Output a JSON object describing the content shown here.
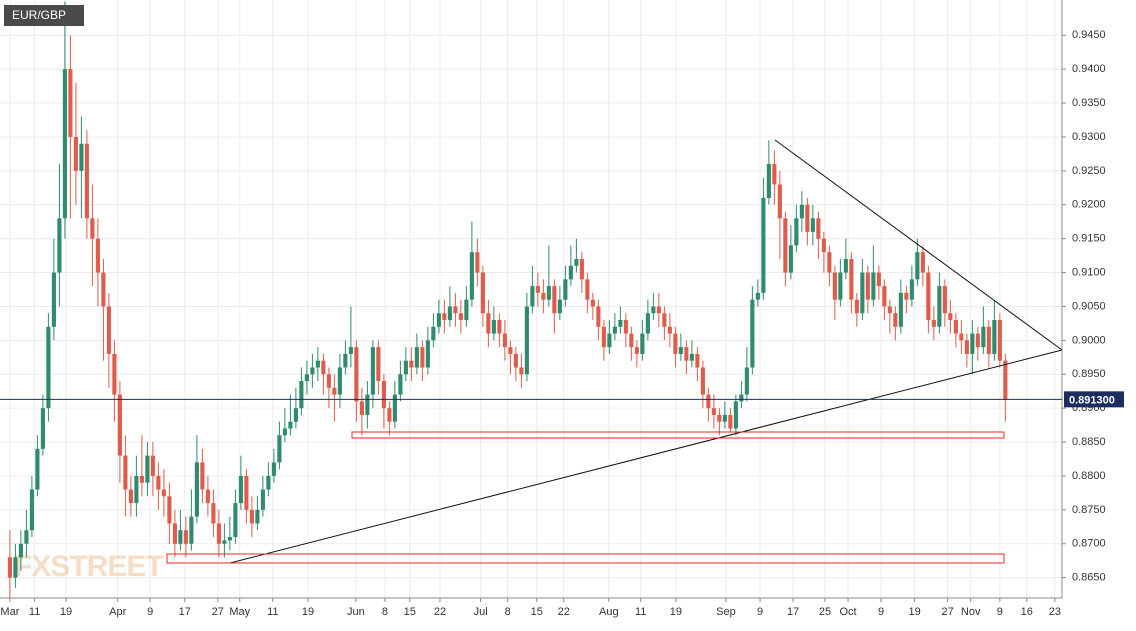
{
  "chart_data": {
    "type": "candlestick",
    "symbol": "EUR/GBP",
    "watermark": "FXSTREET",
    "up_color": "#2f8a6e",
    "down_color": "#de5c4c",
    "grid": true,
    "ylim": [
      0.862,
      0.9502
    ],
    "xlim": [
      -1.8,
      191.3
    ],
    "yticks": [
      {
        "value": 0.865,
        "label": "0.8650"
      },
      {
        "value": 0.87,
        "label": "0.8700"
      },
      {
        "value": 0.875,
        "label": "0.8750"
      },
      {
        "value": 0.88,
        "label": "0.8800"
      },
      {
        "value": 0.885,
        "label": "0.8850"
      },
      {
        "value": 0.89,
        "label": "0.8900"
      },
      {
        "value": 0.895,
        "label": "0.8950"
      },
      {
        "value": 0.9,
        "label": "0.9000"
      },
      {
        "value": 0.905,
        "label": "0.9050"
      },
      {
        "value": 0.91,
        "label": "0.9100"
      },
      {
        "value": 0.915,
        "label": "0.9150"
      },
      {
        "value": 0.92,
        "label": "0.9200"
      },
      {
        "value": 0.925,
        "label": "0.9250"
      },
      {
        "value": 0.93,
        "label": "0.9300"
      },
      {
        "value": 0.935,
        "label": "0.9350"
      },
      {
        "value": 0.94,
        "label": "0.9400"
      },
      {
        "value": 0.945,
        "label": "0.9450"
      }
    ],
    "xticks": [
      {
        "value": 0,
        "label": "Mar"
      },
      {
        "value": 4.5,
        "label": "11"
      },
      {
        "value": 10.2,
        "label": "19"
      },
      {
        "value": 19.6,
        "label": "Apr"
      },
      {
        "value": 25.5,
        "label": "9"
      },
      {
        "value": 31.8,
        "label": "17"
      },
      {
        "value": 37.8,
        "label": "27"
      },
      {
        "value": 41.8,
        "label": "May"
      },
      {
        "value": 47.8,
        "label": "11"
      },
      {
        "value": 54.2,
        "label": "19"
      },
      {
        "value": 62.9,
        "label": "Jun"
      },
      {
        "value": 68.2,
        "label": "8"
      },
      {
        "value": 72.7,
        "label": "15"
      },
      {
        "value": 78.2,
        "label": "22"
      },
      {
        "value": 85.6,
        "label": "Jul"
      },
      {
        "value": 90.5,
        "label": "8"
      },
      {
        "value": 95.8,
        "label": "15"
      },
      {
        "value": 100.7,
        "label": "22"
      },
      {
        "value": 108.9,
        "label": "Aug"
      },
      {
        "value": 114.7,
        "label": "11"
      },
      {
        "value": 121.1,
        "label": "19"
      },
      {
        "value": 130.2,
        "label": "Sep"
      },
      {
        "value": 136.4,
        "label": "9"
      },
      {
        "value": 142.4,
        "label": "17"
      },
      {
        "value": 148.2,
        "label": "25"
      },
      {
        "value": 152.4,
        "label": "Oct"
      },
      {
        "value": 158.4,
        "label": "9"
      },
      {
        "value": 164.5,
        "label": "19"
      },
      {
        "value": 170.5,
        "label": "27"
      },
      {
        "value": 174.7,
        "label": "Nov"
      },
      {
        "value": 180,
        "label": "9"
      },
      {
        "value": 184.9,
        "label": "16"
      },
      {
        "value": 190,
        "label": "23"
      }
    ],
    "last_price": {
      "value": 0.8913,
      "label": "0.891300"
    },
    "candles": [
      [
        0.868,
        0.872,
        0.862,
        0.865
      ],
      [
        0.865,
        0.87,
        0.8635,
        0.868
      ],
      [
        0.868,
        0.872,
        0.866,
        0.87
      ],
      [
        0.87,
        0.875,
        0.868,
        0.872
      ],
      [
        0.872,
        0.88,
        0.871,
        0.878
      ],
      [
        0.878,
        0.886,
        0.877,
        0.884
      ],
      [
        0.884,
        0.892,
        0.883,
        0.89
      ],
      [
        0.89,
        0.904,
        0.888,
        0.902
      ],
      [
        0.902,
        0.915,
        0.9,
        0.91
      ],
      [
        0.91,
        0.926,
        0.905,
        0.918
      ],
      [
        0.918,
        0.95,
        0.915,
        0.94
      ],
      [
        0.94,
        0.945,
        0.918,
        0.93
      ],
      [
        0.93,
        0.938,
        0.92,
        0.925
      ],
      [
        0.925,
        0.933,
        0.918,
        0.929
      ],
      [
        0.929,
        0.931,
        0.915,
        0.918
      ],
      [
        0.918,
        0.923,
        0.908,
        0.915
      ],
      [
        0.915,
        0.918,
        0.905,
        0.91
      ],
      [
        0.91,
        0.912,
        0.897,
        0.905
      ],
      [
        0.905,
        0.907,
        0.893,
        0.898
      ],
      [
        0.898,
        0.9,
        0.888,
        0.892
      ],
      [
        0.892,
        0.894,
        0.879,
        0.883
      ],
      [
        0.883,
        0.886,
        0.874,
        0.878
      ],
      [
        0.878,
        0.88,
        0.874,
        0.876
      ],
      [
        0.876,
        0.883,
        0.874,
        0.88
      ],
      [
        0.88,
        0.886,
        0.877,
        0.879
      ],
      [
        0.879,
        0.885,
        0.877,
        0.883
      ],
      [
        0.883,
        0.885,
        0.877,
        0.88
      ],
      [
        0.88,
        0.882,
        0.875,
        0.878
      ],
      [
        0.878,
        0.881,
        0.874,
        0.877
      ],
      [
        0.877,
        0.879,
        0.87,
        0.873
      ],
      [
        0.873,
        0.875,
        0.868,
        0.87
      ],
      [
        0.87,
        0.875,
        0.869,
        0.872
      ],
      [
        0.872,
        0.874,
        0.868,
        0.87
      ],
      [
        0.87,
        0.878,
        0.869,
        0.874
      ],
      [
        0.874,
        0.886,
        0.873,
        0.882
      ],
      [
        0.882,
        0.884,
        0.876,
        0.878
      ],
      [
        0.878,
        0.88,
        0.874,
        0.876
      ],
      [
        0.876,
        0.878,
        0.871,
        0.873
      ],
      [
        0.873,
        0.875,
        0.868,
        0.87
      ],
      [
        0.87,
        0.873,
        0.868,
        0.8705
      ],
      [
        0.8705,
        0.874,
        0.869,
        0.871
      ],
      [
        0.871,
        0.878,
        0.87,
        0.876
      ],
      [
        0.876,
        0.883,
        0.875,
        0.88
      ],
      [
        0.88,
        0.881,
        0.873,
        0.875
      ],
      [
        0.875,
        0.877,
        0.871,
        0.873
      ],
      [
        0.873,
        0.877,
        0.872,
        0.875
      ],
      [
        0.875,
        0.88,
        0.874,
        0.878
      ],
      [
        0.878,
        0.882,
        0.877,
        0.88
      ],
      [
        0.88,
        0.884,
        0.879,
        0.882
      ],
      [
        0.882,
        0.888,
        0.881,
        0.886
      ],
      [
        0.886,
        0.89,
        0.885,
        0.887
      ],
      [
        0.887,
        0.892,
        0.886,
        0.888
      ],
      [
        0.888,
        0.893,
        0.887,
        0.89
      ],
      [
        0.89,
        0.896,
        0.889,
        0.894
      ],
      [
        0.894,
        0.897,
        0.892,
        0.895
      ],
      [
        0.895,
        0.898,
        0.893,
        0.896
      ],
      [
        0.896,
        0.899,
        0.894,
        0.897
      ],
      [
        0.897,
        0.898,
        0.892,
        0.895
      ],
      [
        0.895,
        0.896,
        0.89,
        0.893
      ],
      [
        0.893,
        0.895,
        0.888,
        0.892
      ],
      [
        0.892,
        0.898,
        0.89,
        0.896
      ],
      [
        0.896,
        0.9,
        0.895,
        0.898
      ],
      [
        0.898,
        0.905,
        0.896,
        0.899
      ],
      [
        0.899,
        0.9,
        0.888,
        0.891
      ],
      [
        0.891,
        0.893,
        0.886,
        0.889
      ],
      [
        0.889,
        0.894,
        0.887,
        0.892
      ],
      [
        0.892,
        0.9,
        0.89,
        0.899
      ],
      [
        0.899,
        0.9,
        0.892,
        0.894
      ],
      [
        0.894,
        0.895,
        0.887,
        0.89
      ],
      [
        0.89,
        0.891,
        0.886,
        0.888
      ],
      [
        0.888,
        0.894,
        0.887,
        0.892
      ],
      [
        0.892,
        0.897,
        0.891,
        0.895
      ],
      [
        0.895,
        0.899,
        0.894,
        0.897
      ],
      [
        0.897,
        0.899,
        0.894,
        0.896
      ],
      [
        0.896,
        0.901,
        0.895,
        0.899
      ],
      [
        0.899,
        0.9,
        0.894,
        0.896
      ],
      [
        0.896,
        0.902,
        0.895,
        0.9
      ],
      [
        0.9,
        0.904,
        0.899,
        0.902
      ],
      [
        0.902,
        0.906,
        0.901,
        0.904
      ],
      [
        0.904,
        0.906,
        0.901,
        0.903
      ],
      [
        0.903,
        0.908,
        0.902,
        0.905
      ],
      [
        0.905,
        0.907,
        0.902,
        0.904
      ],
      [
        0.904,
        0.906,
        0.901,
        0.903
      ],
      [
        0.903,
        0.908,
        0.902,
        0.906
      ],
      [
        0.906,
        0.9175,
        0.905,
        0.913
      ],
      [
        0.913,
        0.915,
        0.908,
        0.91
      ],
      [
        0.91,
        0.911,
        0.902,
        0.904
      ],
      [
        0.904,
        0.906,
        0.899,
        0.901
      ],
      [
        0.901,
        0.905,
        0.9,
        0.903
      ],
      [
        0.903,
        0.904,
        0.899,
        0.901
      ],
      [
        0.901,
        0.903,
        0.897,
        0.899
      ],
      [
        0.899,
        0.9,
        0.895,
        0.898
      ],
      [
        0.898,
        0.899,
        0.894,
        0.896
      ],
      [
        0.896,
        0.898,
        0.893,
        0.895
      ],
      [
        0.895,
        0.907,
        0.894,
        0.905
      ],
      [
        0.905,
        0.911,
        0.904,
        0.908
      ],
      [
        0.908,
        0.91,
        0.905,
        0.907
      ],
      [
        0.907,
        0.909,
        0.904,
        0.906
      ],
      [
        0.906,
        0.914,
        0.905,
        0.908
      ],
      [
        0.908,
        0.909,
        0.901,
        0.904
      ],
      [
        0.904,
        0.908,
        0.903,
        0.906
      ],
      [
        0.906,
        0.911,
        0.905,
        0.909
      ],
      [
        0.909,
        0.914,
        0.908,
        0.911
      ],
      [
        0.911,
        0.915,
        0.91,
        0.912
      ],
      [
        0.912,
        0.913,
        0.907,
        0.909
      ],
      [
        0.909,
        0.91,
        0.904,
        0.906
      ],
      [
        0.906,
        0.907,
        0.903,
        0.905
      ],
      [
        0.905,
        0.906,
        0.9,
        0.902
      ],
      [
        0.902,
        0.903,
        0.897,
        0.899
      ],
      [
        0.899,
        0.903,
        0.898,
        0.901
      ],
      [
        0.901,
        0.904,
        0.9,
        0.902
      ],
      [
        0.902,
        0.905,
        0.901,
        0.903
      ],
      [
        0.903,
        0.904,
        0.899,
        0.901
      ],
      [
        0.901,
        0.902,
        0.897,
        0.899
      ],
      [
        0.899,
        0.9,
        0.896,
        0.898
      ],
      [
        0.898,
        0.903,
        0.897,
        0.901
      ],
      [
        0.901,
        0.906,
        0.9,
        0.904
      ],
      [
        0.904,
        0.907,
        0.903,
        0.905
      ],
      [
        0.905,
        0.907,
        0.902,
        0.904
      ],
      [
        0.904,
        0.905,
        0.9,
        0.902
      ],
      [
        0.902,
        0.904,
        0.899,
        0.901
      ],
      [
        0.901,
        0.902,
        0.896,
        0.898
      ],
      [
        0.898,
        0.901,
        0.897,
        0.899
      ],
      [
        0.899,
        0.9,
        0.895,
        0.897
      ],
      [
        0.897,
        0.9,
        0.896,
        0.898
      ],
      [
        0.898,
        0.899,
        0.894,
        0.896
      ],
      [
        0.896,
        0.897,
        0.89,
        0.892
      ],
      [
        0.892,
        0.893,
        0.888,
        0.89
      ],
      [
        0.89,
        0.892,
        0.887,
        0.889
      ],
      [
        0.889,
        0.89,
        0.886,
        0.888
      ],
      [
        0.888,
        0.891,
        0.887,
        0.889
      ],
      [
        0.889,
        0.89,
        0.8865,
        0.887
      ],
      [
        0.887,
        0.892,
        0.886,
        0.891
      ],
      [
        0.891,
        0.894,
        0.89,
        0.892
      ],
      [
        0.892,
        0.899,
        0.891,
        0.896
      ],
      [
        0.896,
        0.908,
        0.895,
        0.906
      ],
      [
        0.906,
        0.909,
        0.905,
        0.907
      ],
      [
        0.907,
        0.924,
        0.906,
        0.921
      ],
      [
        0.921,
        0.9295,
        0.92,
        0.926
      ],
      [
        0.926,
        0.928,
        0.92,
        0.923
      ],
      [
        0.923,
        0.925,
        0.912,
        0.918
      ],
      [
        0.918,
        0.919,
        0.908,
        0.91
      ],
      [
        0.91,
        0.917,
        0.909,
        0.914
      ],
      [
        0.914,
        0.92,
        0.913,
        0.918
      ],
      [
        0.918,
        0.922,
        0.916,
        0.92
      ],
      [
        0.92,
        0.921,
        0.914,
        0.916
      ],
      [
        0.916,
        0.92,
        0.914,
        0.918
      ],
      [
        0.918,
        0.919,
        0.912,
        0.915
      ],
      [
        0.915,
        0.916,
        0.91,
        0.913
      ],
      [
        0.913,
        0.914,
        0.908,
        0.91
      ],
      [
        0.91,
        0.911,
        0.903,
        0.906
      ],
      [
        0.906,
        0.912,
        0.905,
        0.91
      ],
      [
        0.91,
        0.915,
        0.909,
        0.912
      ],
      [
        0.912,
        0.913,
        0.904,
        0.906
      ],
      [
        0.906,
        0.907,
        0.902,
        0.904
      ],
      [
        0.904,
        0.912,
        0.903,
        0.91
      ],
      [
        0.91,
        0.911,
        0.904,
        0.906
      ],
      [
        0.906,
        0.914,
        0.905,
        0.91
      ],
      [
        0.91,
        0.911,
        0.906,
        0.908
      ],
      [
        0.908,
        0.909,
        0.903,
        0.905
      ],
      [
        0.905,
        0.906,
        0.901,
        0.904
      ],
      [
        0.904,
        0.905,
        0.9,
        0.902
      ],
      [
        0.902,
        0.909,
        0.901,
        0.907
      ],
      [
        0.907,
        0.908,
        0.904,
        0.906
      ],
      [
        0.906,
        0.911,
        0.905,
        0.909
      ],
      [
        0.909,
        0.915,
        0.908,
        0.913
      ],
      [
        0.913,
        0.914,
        0.908,
        0.91
      ],
      [
        0.91,
        0.911,
        0.901,
        0.903
      ],
      [
        0.903,
        0.905,
        0.9,
        0.902
      ],
      [
        0.902,
        0.91,
        0.901,
        0.908
      ],
      [
        0.908,
        0.909,
        0.902,
        0.904
      ],
      [
        0.904,
        0.906,
        0.901,
        0.903
      ],
      [
        0.903,
        0.904,
        0.899,
        0.901
      ],
      [
        0.901,
        0.903,
        0.898,
        0.9
      ],
      [
        0.9,
        0.901,
        0.896,
        0.898
      ],
      [
        0.898,
        0.903,
        0.895,
        0.901
      ],
      [
        0.901,
        0.902,
        0.897,
        0.899
      ],
      [
        0.899,
        0.905,
        0.898,
        0.902
      ],
      [
        0.902,
        0.903,
        0.896,
        0.898
      ],
      [
        0.898,
        0.906,
        0.897,
        0.903
      ],
      [
        0.903,
        0.904,
        0.896,
        0.897
      ],
      [
        0.897,
        0.898,
        0.888,
        0.8913
      ]
    ]
  }
}
